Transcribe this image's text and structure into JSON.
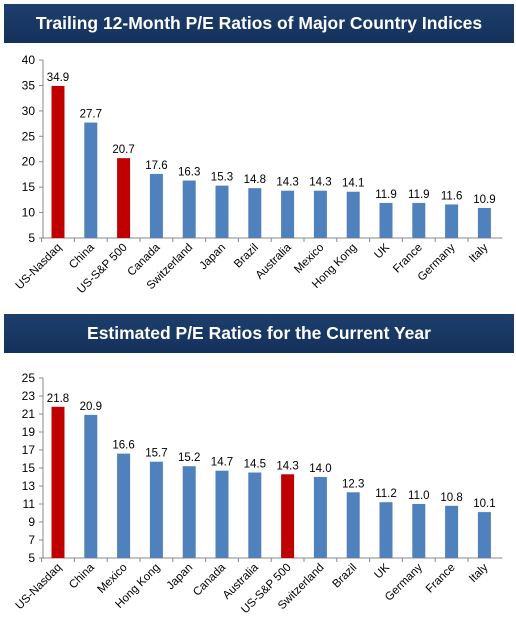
{
  "chart_data": [
    {
      "type": "bar",
      "title": "Trailing 12-Month P/E Ratios of Major Country Indices",
      "categories": [
        "US-Nasdaq",
        "China",
        "US-S&P 500",
        "Canada",
        "Switzerland",
        "Japan",
        "Brazil",
        "Australia",
        "Mexico",
        "Hong Kong",
        "UK",
        "France",
        "Germany",
        "Italy"
      ],
      "values": [
        34.9,
        27.7,
        20.7,
        17.6,
        16.3,
        15.3,
        14.8,
        14.3,
        14.3,
        14.1,
        11.9,
        11.9,
        11.6,
        10.9
      ],
      "value_labels": [
        "34.9",
        "27.7",
        "20.7",
        "17.6",
        "16.3",
        "15.3",
        "14.8",
        "14.3",
        "14.3",
        "14.1",
        "11.9",
        "11.9",
        "11.6",
        "10.9"
      ],
      "highlight": [
        true,
        false,
        true,
        false,
        false,
        false,
        false,
        false,
        false,
        false,
        false,
        false,
        false,
        false
      ],
      "ylim": [
        5,
        40
      ],
      "yticks": [
        5,
        10,
        15,
        20,
        25,
        30,
        35,
        40
      ],
      "xlabel": "",
      "ylabel": "",
      "grid": false,
      "colors": {
        "bar": "#4f81bd",
        "highlight": "#c00000"
      }
    },
    {
      "type": "bar",
      "title": "Estimated P/E Ratios for the Current Year",
      "categories": [
        "US-Nasdaq",
        "China",
        "Mexico",
        "Hong Kong",
        "Japan",
        "Canada",
        "Australia",
        "US-S&P 500",
        "Switzerland",
        "Brazil",
        "UK",
        "Germany",
        "France",
        "Italy"
      ],
      "values": [
        21.8,
        20.9,
        16.6,
        15.7,
        15.2,
        14.7,
        14.5,
        14.3,
        14.0,
        12.3,
        11.2,
        11.0,
        10.8,
        10.1
      ],
      "value_labels": [
        "21.8",
        "20.9",
        "16.6",
        "15.7",
        "15.2",
        "14.7",
        "14.5",
        "14.3",
        "14.0",
        "12.3",
        "11.2",
        "11.0",
        "10.8",
        "10.1"
      ],
      "highlight": [
        true,
        false,
        false,
        false,
        false,
        false,
        false,
        true,
        false,
        false,
        false,
        false,
        false,
        false
      ],
      "ylim": [
        5,
        25
      ],
      "yticks": [
        5,
        7,
        9,
        11,
        13,
        15,
        17,
        19,
        21,
        23,
        25
      ],
      "xlabel": "",
      "ylabel": "",
      "grid": false,
      "colors": {
        "bar": "#4f81bd",
        "highlight": "#c00000"
      }
    }
  ]
}
